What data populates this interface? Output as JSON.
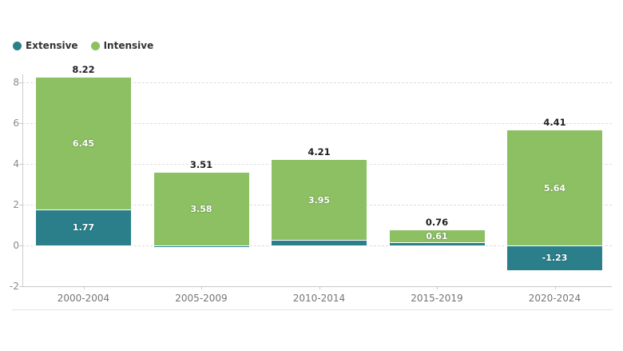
{
  "chart_data": {
    "type": "bar",
    "stacked": true,
    "title": "",
    "xlabel": "",
    "ylabel": "",
    "categories": [
      "2000-2004",
      "2005-2009",
      "2010-2014",
      "2015-2019",
      "2020-2024"
    ],
    "series": [
      {
        "name": "Extensive",
        "color": "#2a7f8a",
        "values": [
          1.77,
          -0.07,
          0.26,
          0.15,
          -1.23
        ],
        "labels": [
          "1.77",
          "",
          "",
          "",
          "-1.23"
        ]
      },
      {
        "name": "Intensive",
        "color": "#8cc063",
        "values": [
          6.45,
          3.58,
          3.95,
          0.61,
          5.64
        ],
        "labels": [
          "6.45",
          "3.58",
          "3.95",
          "0.61",
          "5.64"
        ]
      }
    ],
    "totals": [
      "8.22",
      "3.51",
      "4.21",
      "0.76",
      "4.41"
    ],
    "yticks": [
      8,
      6,
      4,
      2,
      0,
      -2
    ],
    "ylim": [
      -2,
      8.8
    ],
    "grid": "dashed-horizontal",
    "legend_position": "top-left"
  }
}
